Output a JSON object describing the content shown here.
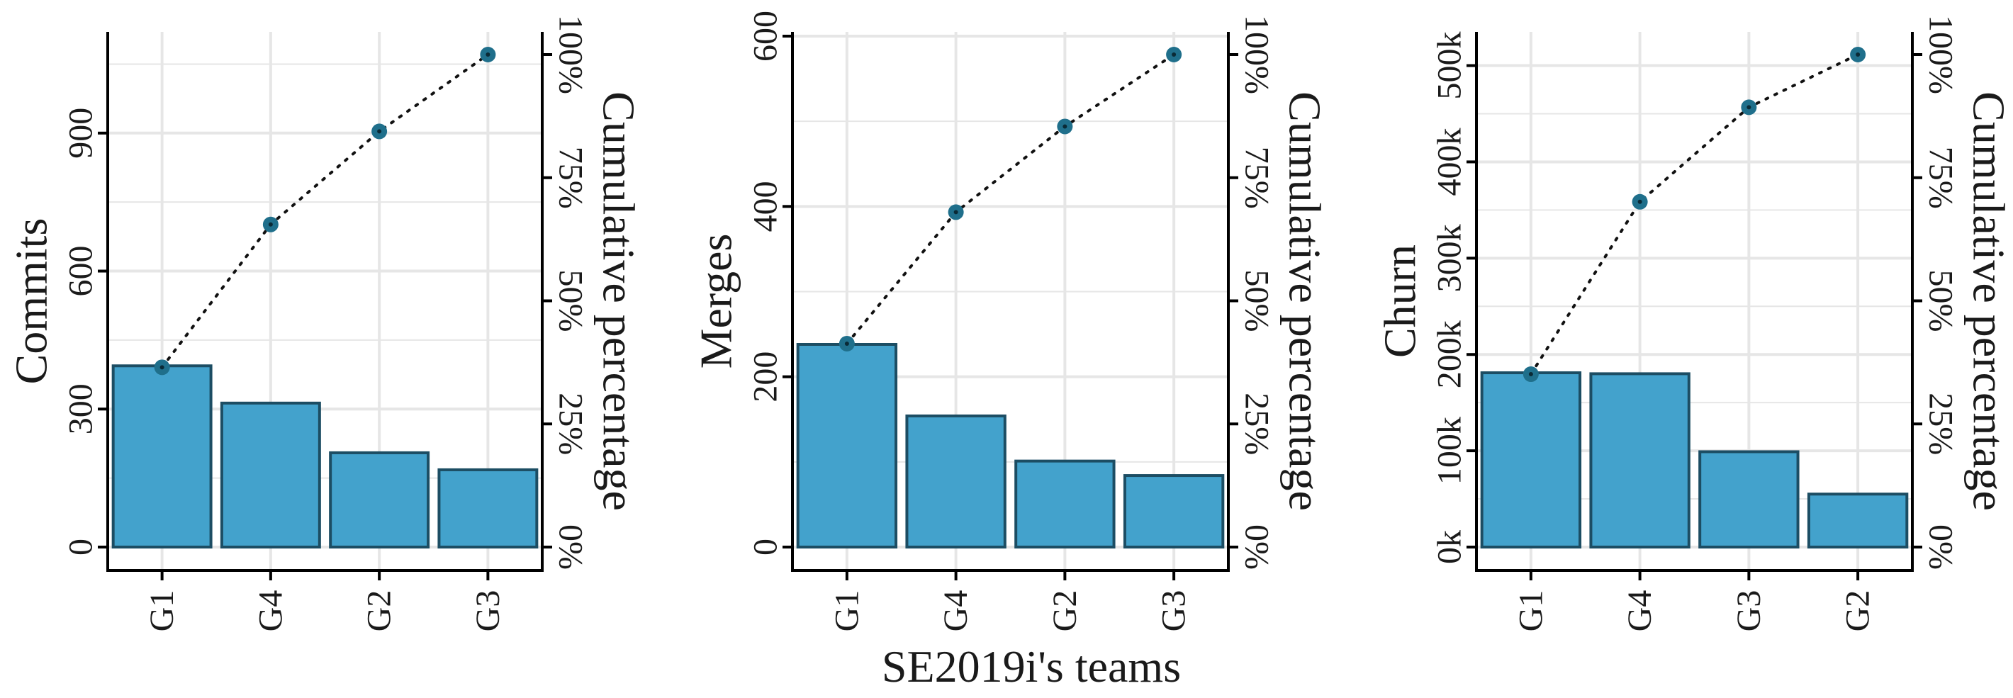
{
  "shared_xlabel": "SE2019i's teams",
  "colors": {
    "bar_fill": "#43a2cc",
    "bar_stroke": "#1c4d63",
    "point": "#1f6f8b",
    "line": "#111111",
    "grid": "#e6e6e6"
  },
  "chart_data": [
    {
      "type": "bar",
      "panel": "commits",
      "ylabel": "Commits",
      "y2label": "Cumulative percentage",
      "categories": [
        "G1",
        "G4",
        "G2",
        "G3"
      ],
      "values": [
        394,
        313,
        205,
        168
      ],
      "cumulative_percent": [
        36.5,
        65.5,
        84.4,
        100
      ],
      "ylim": [
        0,
        1120
      ],
      "yticks": [
        0,
        300,
        600,
        900
      ],
      "ytick_labels": [
        "0",
        "300",
        "600",
        "900"
      ],
      "y2ticks": [
        0,
        25,
        50,
        75,
        100
      ],
      "y2tick_labels": [
        "0%",
        "25%",
        "50%",
        "75%",
        "100%"
      ],
      "grid": true
    },
    {
      "type": "bar",
      "panel": "merges",
      "ylabel": "Merges",
      "y2label": "Cumulative percentage",
      "categories": [
        "G1",
        "G4",
        "G2",
        "G3"
      ],
      "values": [
        238,
        154,
        101,
        84
      ],
      "cumulative_percent": [
        41.3,
        68.0,
        85.4,
        100
      ],
      "ylim": [
        0,
        605
      ],
      "yticks": [
        0,
        200,
        400,
        600
      ],
      "ytick_labels": [
        "0",
        "200",
        "400",
        "600"
      ],
      "y2ticks": [
        0,
        25,
        50,
        75,
        100
      ],
      "y2tick_labels": [
        "0%",
        "25%",
        "50%",
        "75%",
        "100%"
      ],
      "grid": true
    },
    {
      "type": "bar",
      "panel": "churn",
      "ylabel": "Churn",
      "y2label": "Cumulative percentage",
      "categories": [
        "G1",
        "G4",
        "G3",
        "G2"
      ],
      "values": [
        181000,
        180000,
        99000,
        55000
      ],
      "cumulative_percent": [
        35.1,
        70.1,
        89.3,
        100
      ],
      "ylim": [
        0,
        535000
      ],
      "yticks": [
        0,
        100000,
        200000,
        300000,
        400000,
        500000
      ],
      "ytick_labels": [
        "0k",
        "100k",
        "200k",
        "300k",
        "400k",
        "500k"
      ],
      "y2ticks": [
        0,
        25,
        50,
        75,
        100
      ],
      "y2tick_labels": [
        "0%",
        "25%",
        "50%",
        "75%",
        "100%"
      ],
      "grid": true
    }
  ]
}
